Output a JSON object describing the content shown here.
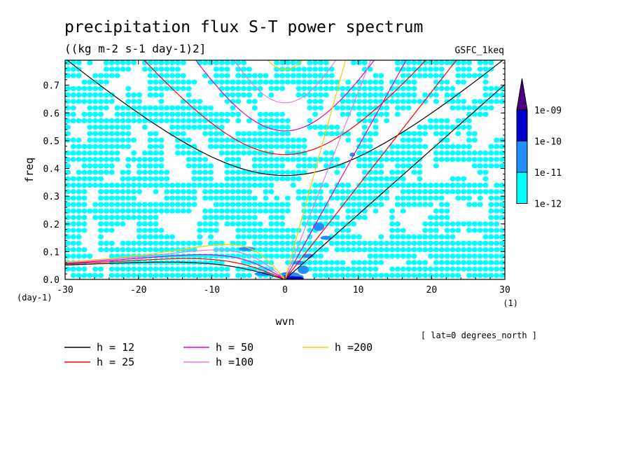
{
  "chart_data": {
    "type": "heatmap",
    "title": "precipitation flux S-T power spectrum",
    "subtitle": "((kg m-2 s-1 day-1)2]",
    "source_label": "GSFC_1keq",
    "xlabel": "wvn",
    "ylabel": "freq",
    "x_unit": "(1)",
    "y_unit": "(day-1)",
    "annotation": "[ lat=0 degrees_north ]",
    "xlim": [
      -30,
      30
    ],
    "ylim": [
      0,
      0.79
    ],
    "x_ticks": [
      -30,
      -20,
      -10,
      0,
      10,
      20,
      30
    ],
    "x_tick_labels": [
      "-30",
      "-20",
      "-10",
      "0",
      "10",
      "20",
      "30"
    ],
    "y_ticks": [
      0,
      0.1,
      0.2,
      0.3,
      0.4,
      0.5,
      0.6,
      0.7
    ],
    "y_tick_labels": [
      "0.0",
      "0.1",
      "0.2",
      "0.3",
      "0.4",
      "0.5",
      "0.6",
      "0.7"
    ],
    "colorbar": {
      "levels": [
        "1e-12",
        "1e-11",
        "1e-10",
        "1e-09"
      ],
      "colors": [
        "#00ffff",
        "#1e90ff",
        "#0000cd",
        "#4b0082"
      ]
    },
    "dispersion_curves": [
      {
        "label": "h = 12",
        "h": 12,
        "color": "#000000"
      },
      {
        "label": "h = 25",
        "h": 25,
        "color": "#ff0000"
      },
      {
        "label": "h = 50",
        "h": 50,
        "color": "#e000c0"
      },
      {
        "label": "h =100",
        "h": 100,
        "color": "#e080e0"
      },
      {
        "label": "h =200",
        "h": 200,
        "color": "#f0d000"
      }
    ]
  }
}
